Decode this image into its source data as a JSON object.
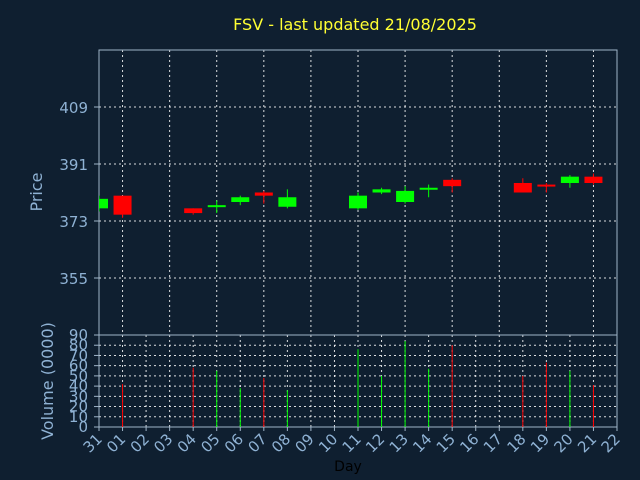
{
  "chart_data": [
    {
      "type": "candlestick",
      "title": "FSV - last updated 21/08/2025",
      "ylabel": "Price",
      "ylim": [
        337,
        427
      ],
      "yticks": [
        355,
        373,
        391,
        409
      ],
      "grid": true,
      "x_categories": [
        "31",
        "01",
        "02",
        "03",
        "04",
        "05",
        "06",
        "07",
        "08",
        "09",
        "10",
        "11",
        "12",
        "13",
        "14",
        "15",
        "16",
        "17",
        "18",
        "19",
        "20",
        "21",
        "22"
      ],
      "candles": [
        {
          "day": "31",
          "open": 377,
          "close": 380,
          "high": 381,
          "low": 376,
          "dir": "up"
        },
        {
          "day": "01",
          "open": 381,
          "close": 375,
          "high": 381,
          "low": 374,
          "dir": "down"
        },
        {
          "day": "04",
          "open": 377,
          "close": 375.5,
          "high": 377,
          "low": 375,
          "dir": "down"
        },
        {
          "day": "05",
          "open": 377.5,
          "close": 378,
          "high": 379.5,
          "low": 375.5,
          "dir": "up"
        },
        {
          "day": "06",
          "open": 379,
          "close": 380.5,
          "high": 381,
          "low": 378,
          "dir": "up"
        },
        {
          "day": "07",
          "open": 382,
          "close": 381,
          "high": 382.5,
          "low": 378.5,
          "dir": "down"
        },
        {
          "day": "08",
          "open": 377.5,
          "close": 380.5,
          "high": 383,
          "low": 377,
          "dir": "up"
        },
        {
          "day": "11",
          "open": 377,
          "close": 381,
          "high": 382,
          "low": 376.5,
          "dir": "up"
        },
        {
          "day": "12",
          "open": 382,
          "close": 383,
          "high": 383.5,
          "low": 381.5,
          "dir": "up"
        },
        {
          "day": "13",
          "open": 379,
          "close": 382.5,
          "high": 384,
          "low": 378.5,
          "dir": "up"
        },
        {
          "day": "14",
          "open": 383,
          "close": 383.5,
          "high": 384.5,
          "low": 380.5,
          "dir": "up"
        },
        {
          "day": "15",
          "open": 386,
          "close": 384,
          "high": 386.5,
          "low": 382,
          "dir": "down"
        },
        {
          "day": "18",
          "open": 385,
          "close": 382,
          "high": 386.5,
          "low": 382,
          "dir": "down"
        },
        {
          "day": "19",
          "open": 384.5,
          "close": 384,
          "high": 385,
          "low": 382,
          "dir": "down"
        },
        {
          "day": "20",
          "open": 385,
          "close": 387,
          "high": 387.5,
          "low": 383.5,
          "dir": "up"
        },
        {
          "day": "21",
          "open": 387,
          "close": 385,
          "high": 388,
          "low": 384.5,
          "dir": "down"
        }
      ]
    },
    {
      "type": "bar",
      "ylabel": "Volume (0000)",
      "xlabel": "Day",
      "ylim": [
        0,
        90
      ],
      "yticks": [
        0,
        10,
        20,
        30,
        40,
        50,
        60,
        70,
        80,
        90
      ],
      "grid": true,
      "x_categories": [
        "31",
        "01",
        "02",
        "03",
        "04",
        "05",
        "06",
        "07",
        "08",
        "09",
        "10",
        "11",
        "12",
        "13",
        "14",
        "15",
        "16",
        "17",
        "18",
        "19",
        "20",
        "21",
        "22"
      ],
      "volumes": [
        {
          "day": "01",
          "value": 42,
          "dir": "down"
        },
        {
          "day": "04",
          "value": 58,
          "dir": "down"
        },
        {
          "day": "05",
          "value": 55,
          "dir": "up"
        },
        {
          "day": "06",
          "value": 38,
          "dir": "up"
        },
        {
          "day": "07",
          "value": 48,
          "dir": "down"
        },
        {
          "day": "08",
          "value": 36,
          "dir": "up"
        },
        {
          "day": "11",
          "value": 76,
          "dir": "up"
        },
        {
          "day": "12",
          "value": 50,
          "dir": "up"
        },
        {
          "day": "13",
          "value": 84,
          "dir": "up"
        },
        {
          "day": "14",
          "value": 57,
          "dir": "up"
        },
        {
          "day": "15",
          "value": 80,
          "dir": "down"
        },
        {
          "day": "18",
          "value": 50,
          "dir": "down"
        },
        {
          "day": "19",
          "value": 63,
          "dir": "down"
        },
        {
          "day": "20",
          "value": 55,
          "dir": "up"
        },
        {
          "day": "21",
          "value": 41,
          "dir": "down"
        }
      ]
    }
  ],
  "colors": {
    "up": "#00ff00",
    "down": "#ff0000",
    "background": "#0f1f30",
    "title": "#ffff33",
    "text": "#8fb2d4"
  }
}
